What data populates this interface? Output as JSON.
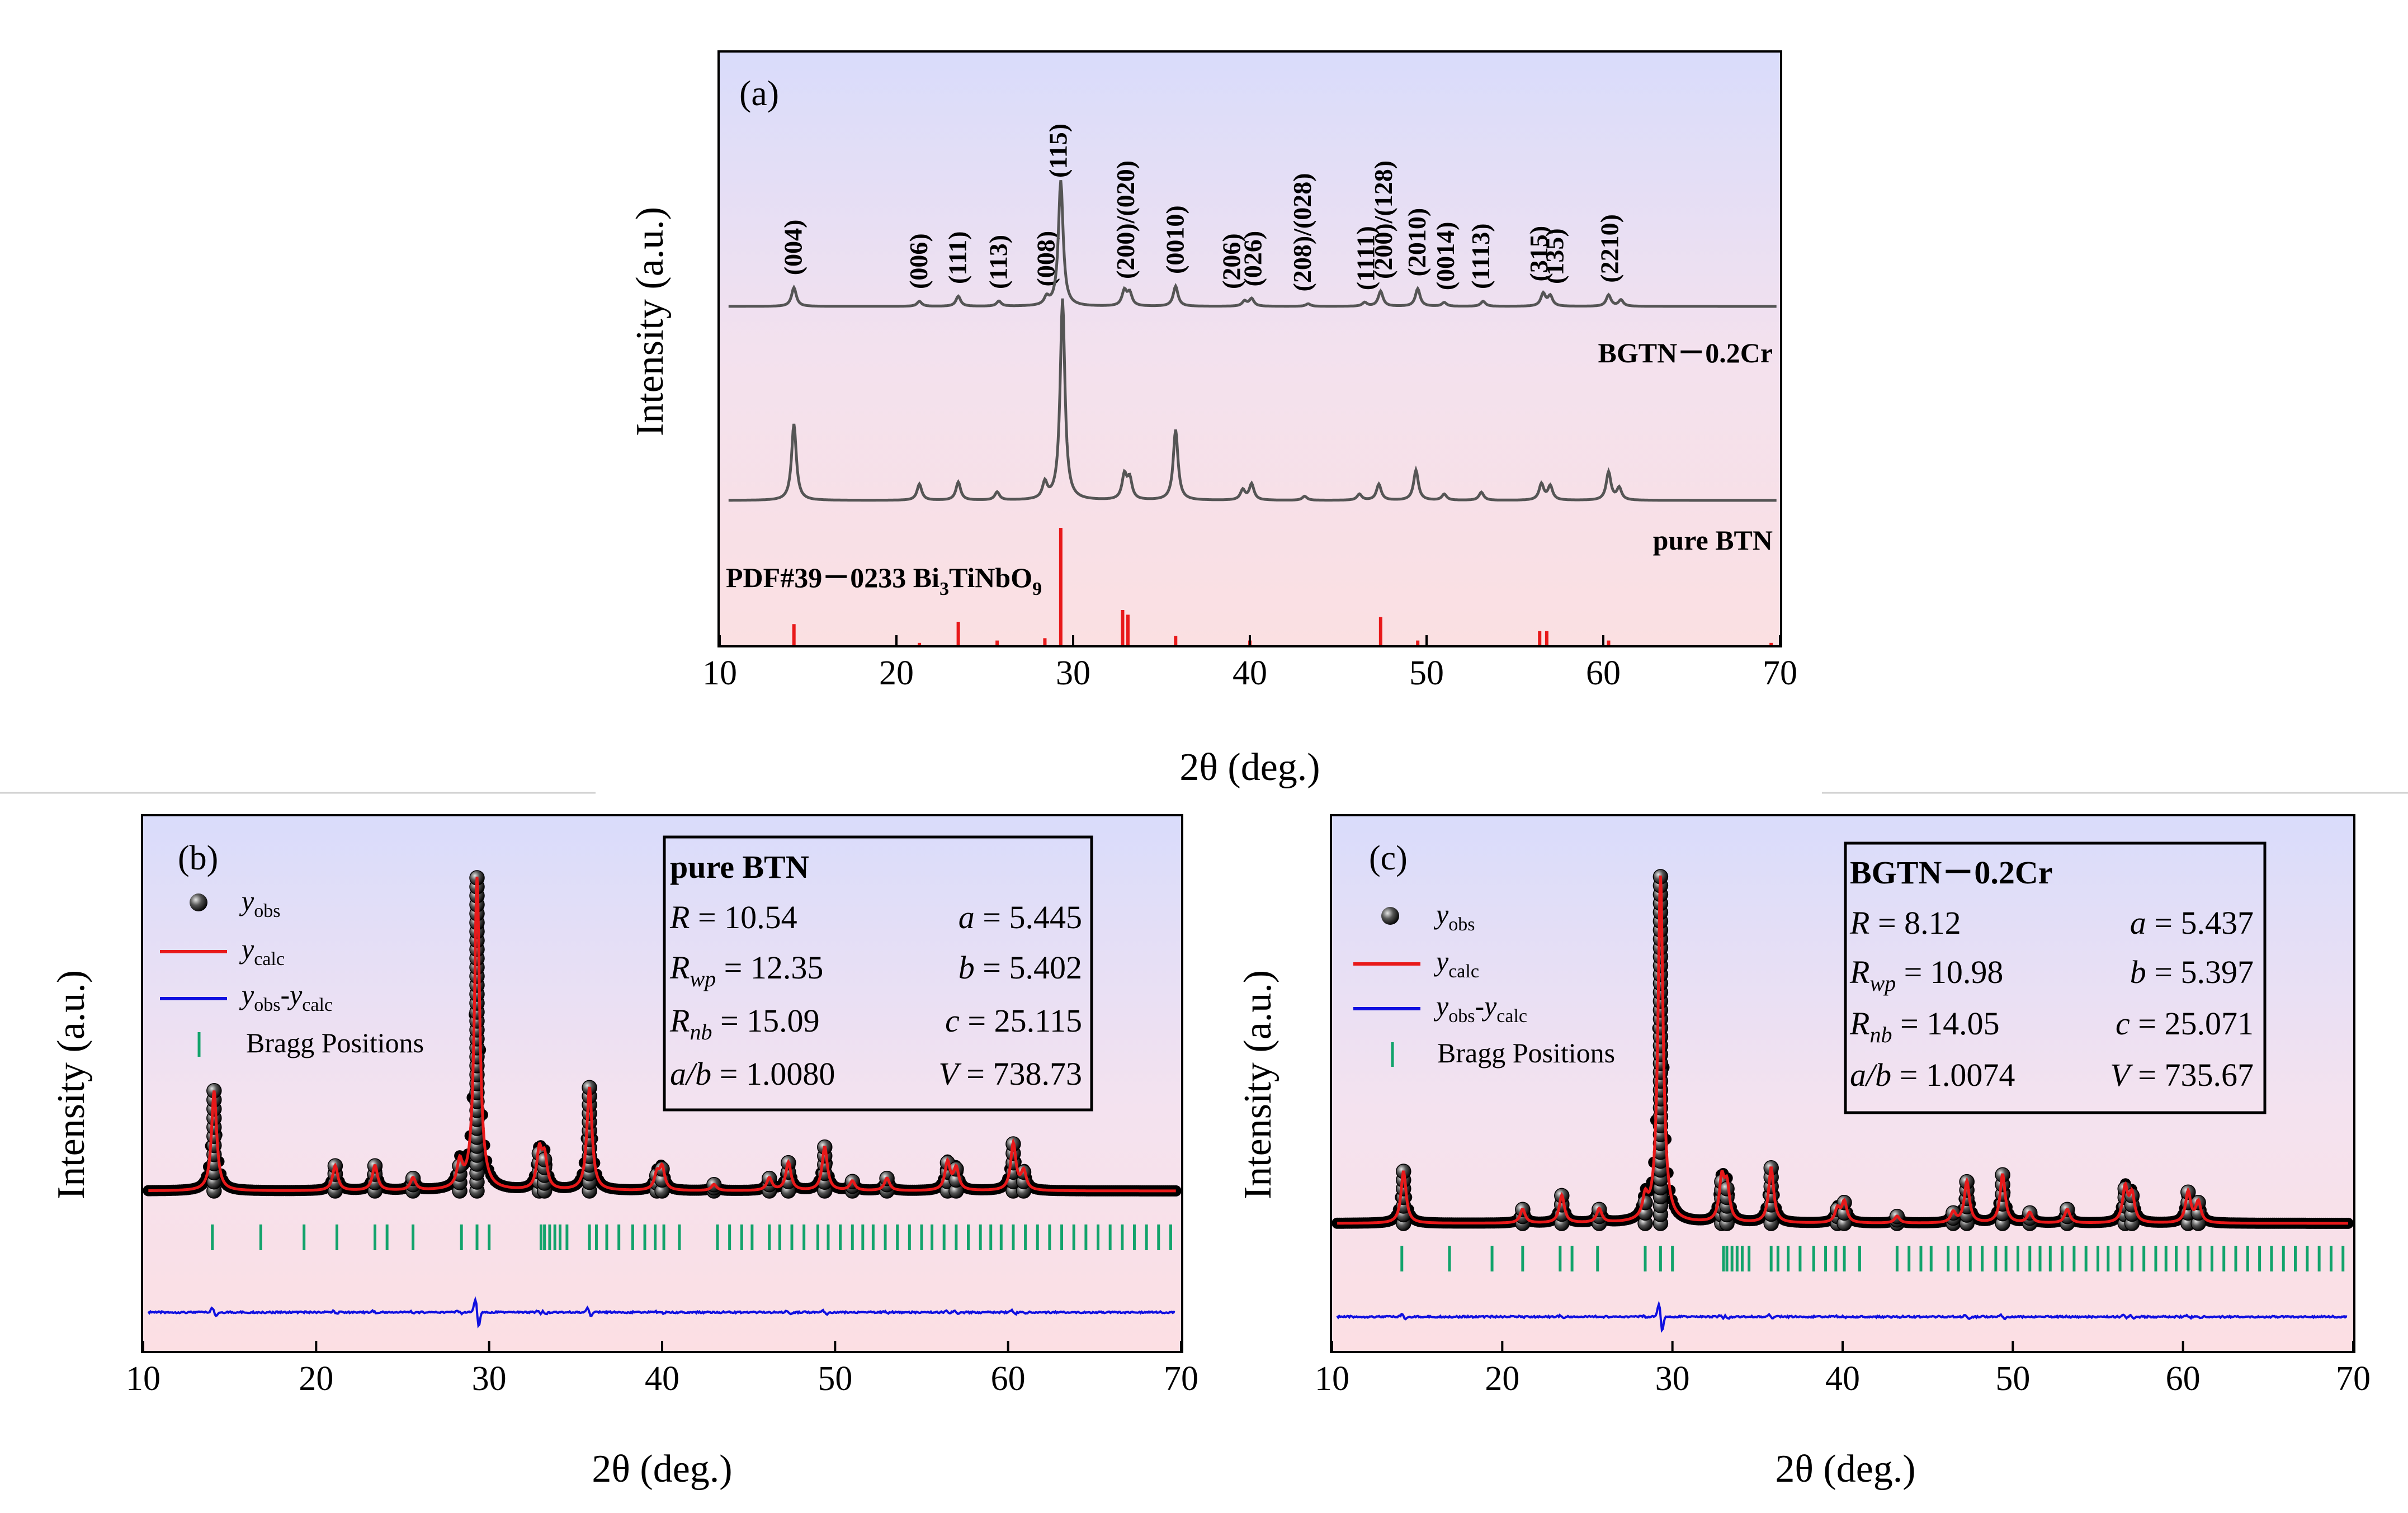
{
  "figure": {
    "panel_a": {
      "label": "(a)",
      "ylabel": "Intensity (a.u.)",
      "xlabel": "2θ (deg.)",
      "series_labels": [
        "BGTN－0.2Cr",
        "pure BTN"
      ],
      "reference_label": "PDF#39－0233 Bi",
      "reference_formula": [
        "Bi",
        "3",
        "TiNbO",
        "9"
      ],
      "peak_labels": [
        {
          "t": "(004)",
          "x": 14.2
        },
        {
          "t": "(006)",
          "x": 21.3
        },
        {
          "t": "(111)",
          "x": 23.5
        },
        {
          "t": "(113)",
          "x": 25.8
        },
        {
          "t": "(008)",
          "x": 28.5
        },
        {
          "t": "(115)",
          "x": 29.2
        },
        {
          "t": "(200)/(020)",
          "x": 33.0
        },
        {
          "t": "(0010)",
          "x": 35.8
        },
        {
          "t": "(206)",
          "x": 39.0
        },
        {
          "t": "(026)",
          "x": 40.2
        },
        {
          "t": "(208)/(028)",
          "x": 43.0
        },
        {
          "t": "(1111)",
          "x": 46.6
        },
        {
          "t": "(200)/(128)",
          "x": 47.6
        },
        {
          "t": "(2010)",
          "x": 49.5
        },
        {
          "t": "(0014)",
          "x": 51.1
        },
        {
          "t": "(1113)",
          "x": 53.1
        },
        {
          "t": "(315)",
          "x": 56.4
        },
        {
          "t": "(135)",
          "x": 57.3
        },
        {
          "t": "(2210)",
          "x": 60.4
        }
      ]
    },
    "panel_b": {
      "label": "(b)",
      "legend": {
        "obs": "y",
        "obs_sub": "obs",
        "calc": "y",
        "calc_sub": "calc",
        "diff": "y",
        "diff_sub1": "obs",
        "diff_mid": "-y",
        "diff_sub2": "calc",
        "bragg": "Bragg Positions"
      },
      "box": {
        "title": "pure BTN",
        "R": "10.54",
        "Rwp": "12.35",
        "Rnb": "15.09",
        "ab": "1.0080",
        "a": "5.445",
        "b": "5.402",
        "c": "25.115",
        "V": "738.73"
      },
      "ylabel": "Intensity (a.u.)",
      "xlabel": "2θ (deg.)"
    },
    "panel_c": {
      "label": "(c)",
      "legend": {
        "obs": "y",
        "obs_sub": "obs",
        "calc": "y",
        "calc_sub": "calc",
        "diff": "y",
        "diff_sub1": "obs",
        "diff_mid": "-y",
        "diff_sub2": "calc",
        "bragg": "Bragg Positions"
      },
      "box": {
        "title": "BGTN－0.2Cr",
        "R": "8.12",
        "Rwp": "10.98",
        "Rnb": "14.05",
        "ab": "1.0074",
        "a": "5.437",
        "b": "5.397",
        "c": "25.071",
        "V": "735.67"
      },
      "ylabel": "Intensity (a.u.)",
      "xlabel": "2θ (deg.)"
    },
    "colors": {
      "curve": "#555555",
      "ref": "#e8191a",
      "calc": "#e8191a",
      "diff": "#1010e0",
      "bragg": "#12a36b",
      "obs": "#000000"
    }
  },
  "chart_data": [
    {
      "type": "line",
      "panel": "a",
      "xlim": [
        10,
        70
      ],
      "xticks": [
        10,
        20,
        30,
        40,
        50,
        60,
        70
      ],
      "series": [
        {
          "name": "BGTN－0.2Cr",
          "peaks": [
            [
              14.2,
              0.15
            ],
            [
              21.3,
              0.04
            ],
            [
              23.5,
              0.08
            ],
            [
              25.8,
              0.04
            ],
            [
              28.5,
              0.06
            ],
            [
              29.3,
              1.0
            ],
            [
              32.9,
              0.12
            ],
            [
              33.2,
              0.1
            ],
            [
              35.8,
              0.16
            ],
            [
              39.7,
              0.04
            ],
            [
              40.1,
              0.06
            ],
            [
              43.3,
              0.02
            ],
            [
              46.5,
              0.03
            ],
            [
              47.4,
              0.12
            ],
            [
              49.5,
              0.14
            ],
            [
              51.0,
              0.03
            ],
            [
              53.2,
              0.04
            ],
            [
              56.6,
              0.1
            ],
            [
              57.0,
              0.08
            ],
            [
              60.3,
              0.09
            ],
            [
              61.0,
              0.05
            ]
          ]
        },
        {
          "name": "pure BTN",
          "peaks": [
            [
              14.2,
              0.38
            ],
            [
              21.3,
              0.08
            ],
            [
              23.5,
              0.09
            ],
            [
              25.7,
              0.04
            ],
            [
              28.4,
              0.08
            ],
            [
              29.4,
              1.0
            ],
            [
              32.9,
              0.12
            ],
            [
              33.2,
              0.1
            ],
            [
              35.8,
              0.35
            ],
            [
              39.6,
              0.05
            ],
            [
              40.1,
              0.08
            ],
            [
              43.1,
              0.02
            ],
            [
              46.2,
              0.03
            ],
            [
              47.3,
              0.08
            ],
            [
              49.4,
              0.15
            ],
            [
              51.0,
              0.03
            ],
            [
              53.1,
              0.04
            ],
            [
              56.5,
              0.08
            ],
            [
              57.0,
              0.07
            ],
            [
              60.3,
              0.14
            ],
            [
              60.9,
              0.06
            ]
          ]
        },
        {
          "name": "PDF#39－0233 Bi3TiNbO9",
          "sticks": [
            [
              14.2,
              0.18
            ],
            [
              21.3,
              0.02
            ],
            [
              23.5,
              0.2
            ],
            [
              25.7,
              0.04
            ],
            [
              28.4,
              0.06
            ],
            [
              29.3,
              1.0
            ],
            [
              32.8,
              0.3
            ],
            [
              33.1,
              0.26
            ],
            [
              35.8,
              0.08
            ],
            [
              40.0,
              0.04
            ],
            [
              47.4,
              0.24
            ],
            [
              49.5,
              0.04
            ],
            [
              56.4,
              0.12
            ],
            [
              56.8,
              0.12
            ],
            [
              60.3,
              0.04
            ],
            [
              69.5,
              0.02
            ]
          ]
        }
      ]
    },
    {
      "type": "scatter",
      "panel": "b",
      "xlim": [
        10,
        70
      ],
      "xticks": [
        10,
        20,
        30,
        40,
        50,
        60,
        70
      ],
      "peaks": [
        [
          14.1,
          0.32
        ],
        [
          21.1,
          0.08
        ],
        [
          23.4,
          0.08
        ],
        [
          25.6,
          0.04
        ],
        [
          28.3,
          0.08
        ],
        [
          29.3,
          1.0
        ],
        [
          32.9,
          0.12
        ],
        [
          33.2,
          0.1
        ],
        [
          35.8,
          0.33
        ],
        [
          39.7,
          0.05
        ],
        [
          40.0,
          0.07
        ],
        [
          43.0,
          0.02
        ],
        [
          46.2,
          0.04
        ],
        [
          47.3,
          0.09
        ],
        [
          49.4,
          0.14
        ],
        [
          51.0,
          0.03
        ],
        [
          53.0,
          0.04
        ],
        [
          56.5,
          0.09
        ],
        [
          57.0,
          0.07
        ],
        [
          60.3,
          0.15
        ],
        [
          60.9,
          0.06
        ]
      ],
      "bragg_positions": [
        14.0,
        16.8,
        19.3,
        21.2,
        23.4,
        24.1,
        25.6,
        28.4,
        29.3,
        30.0,
        33.0,
        33.2,
        33.5,
        33.8,
        34.1,
        34.5,
        35.8,
        36.2,
        36.8,
        37.5,
        38.3,
        39.0,
        39.6,
        40.1,
        41.0,
        43.2,
        43.9,
        44.6,
        45.2,
        46.2,
        46.8,
        47.5,
        48.2,
        49.0,
        49.6,
        50.3,
        51.0,
        51.6,
        52.2,
        52.9,
        53.6,
        54.3,
        55.0,
        55.6,
        56.3,
        57.0,
        57.7,
        58.4,
        59.0,
        59.6,
        60.3,
        61.0,
        61.7,
        62.4,
        63.1,
        63.8,
        64.5,
        65.2,
        65.9,
        66.6,
        67.3,
        68.0,
        68.7,
        69.4
      ]
    },
    {
      "type": "scatter",
      "panel": "c",
      "xlim": [
        10,
        70
      ],
      "xticks": [
        10,
        20,
        30,
        40,
        50,
        60,
        70
      ],
      "peaks": [
        [
          14.2,
          0.15
        ],
        [
          21.2,
          0.04
        ],
        [
          23.5,
          0.08
        ],
        [
          25.7,
          0.04
        ],
        [
          28.4,
          0.06
        ],
        [
          29.3,
          1.0
        ],
        [
          32.9,
          0.12
        ],
        [
          33.2,
          0.1
        ],
        [
          35.8,
          0.16
        ],
        [
          39.7,
          0.04
        ],
        [
          40.1,
          0.06
        ],
        [
          43.2,
          0.02
        ],
        [
          46.5,
          0.03
        ],
        [
          47.3,
          0.12
        ],
        [
          49.4,
          0.14
        ],
        [
          51.0,
          0.03
        ],
        [
          53.2,
          0.04
        ],
        [
          56.6,
          0.1
        ],
        [
          57.0,
          0.08
        ],
        [
          60.3,
          0.09
        ],
        [
          60.9,
          0.06
        ]
      ],
      "bragg_positions": [
        14.1,
        16.9,
        19.4,
        21.2,
        23.4,
        24.1,
        25.6,
        28.4,
        29.3,
        30.0,
        33.0,
        33.2,
        33.5,
        33.8,
        34.1,
        34.5,
        35.8,
        36.2,
        36.8,
        37.5,
        38.3,
        39.0,
        39.6,
        40.1,
        41.0,
        43.2,
        43.9,
        44.6,
        45.2,
        46.2,
        46.8,
        47.5,
        48.2,
        49.0,
        49.6,
        50.3,
        51.0,
        51.6,
        52.2,
        52.9,
        53.6,
        54.3,
        55.0,
        55.6,
        56.3,
        57.0,
        57.7,
        58.4,
        59.0,
        59.6,
        60.3,
        61.0,
        61.7,
        62.4,
        63.1,
        63.8,
        64.5,
        65.2,
        65.9,
        66.6,
        67.3,
        68.0,
        68.7,
        69.4
      ]
    }
  ]
}
